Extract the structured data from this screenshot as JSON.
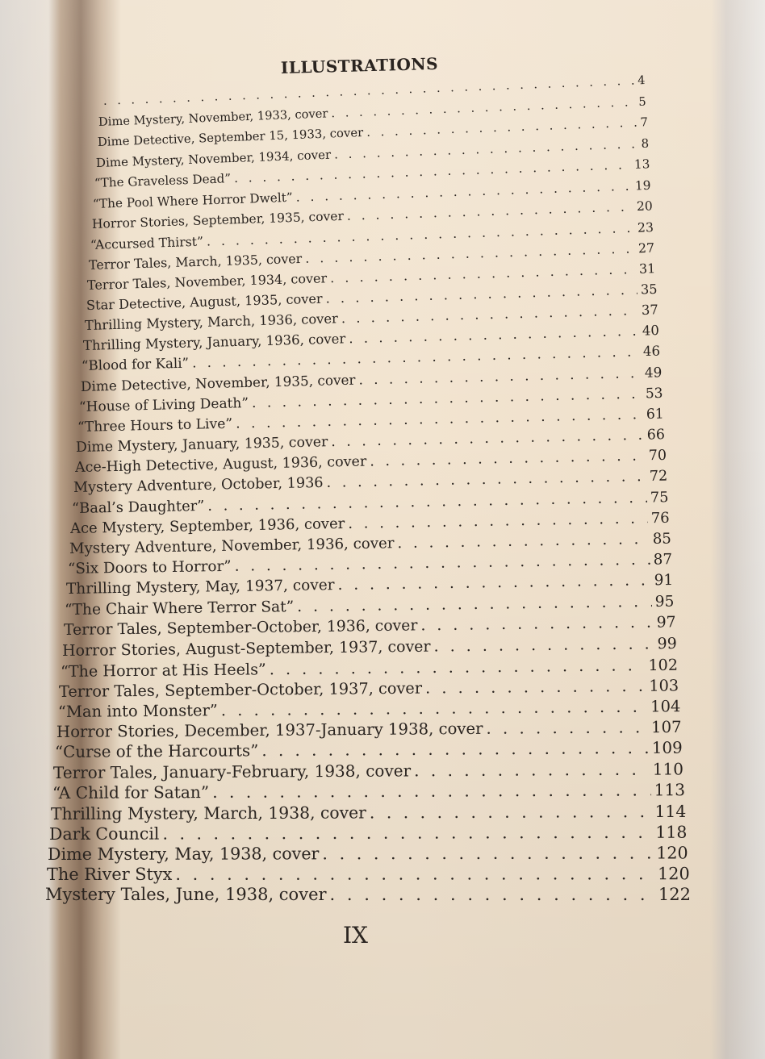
{
  "heading": "ILLUSTRATIONS",
  "entries": [
    {
      "title": "",
      "page": "4"
    },
    {
      "title": "Dime Mystery, November, 1933, cover",
      "page": "5"
    },
    {
      "title": "Dime Detective, September 15, 1933, cover",
      "page": "7"
    },
    {
      "title": "Dime Mystery, November, 1934, cover",
      "page": "8"
    },
    {
      "title": "“The Graveless Dead”",
      "page": "13"
    },
    {
      "title": "“The Pool Where Horror Dwelt”",
      "page": "19"
    },
    {
      "title": "Horror Stories, September, 1935, cover",
      "page": "20"
    },
    {
      "title": "“Accursed Thirst”",
      "page": "23"
    },
    {
      "title": "Terror Tales, March, 1935, cover",
      "page": "27"
    },
    {
      "title": "Terror Tales, November, 1934, cover",
      "page": "31"
    },
    {
      "title": "Star Detective, August, 1935, cover",
      "page": "35"
    },
    {
      "title": "Thrilling Mystery, March, 1936, cover",
      "page": "37"
    },
    {
      "title": "Thrilling Mystery, January, 1936, cover",
      "page": "40"
    },
    {
      "title": "“Blood for Kali”",
      "page": "46"
    },
    {
      "title": "Dime Detective, November, 1935, cover",
      "page": "49"
    },
    {
      "title": "“House of Living Death”",
      "page": "53"
    },
    {
      "title": "“Three Hours to Live”",
      "page": "61"
    },
    {
      "title": "Dime Mystery, January, 1935, cover",
      "page": "66"
    },
    {
      "title": "Ace-High Detective, August, 1936, cover",
      "page": "70"
    },
    {
      "title": "Mystery Adventure, October, 1936",
      "page": "72"
    },
    {
      "title": "“Baal’s Daughter”",
      "page": "75"
    },
    {
      "title": "Ace Mystery, September, 1936, cover",
      "page": "76"
    },
    {
      "title": "Mystery Adventure, November, 1936, cover",
      "page": "85"
    },
    {
      "title": "“Six Doors to Horror”",
      "page": "87"
    },
    {
      "title": "Thrilling Mystery, May, 1937, cover",
      "page": "91"
    },
    {
      "title": "“The Chair Where Terror Sat”",
      "page": "95"
    },
    {
      "title": "Terror Tales, September-October, 1936, cover",
      "page": "97"
    },
    {
      "title": "Horror Stories, August-September, 1937, cover",
      "page": "99"
    },
    {
      "title": "“The Horror at His Heels”",
      "page": "102"
    },
    {
      "title": "Terror Tales, September-October, 1937, cover",
      "page": "103"
    },
    {
      "title": "“Man into Monster”",
      "page": "104"
    },
    {
      "title": "Horror Stories, December, 1937-January 1938, cover",
      "page": "107"
    },
    {
      "title": "“Curse of the Harcourts”",
      "page": "109"
    },
    {
      "title": "Terror Tales, January-February, 1938, cover",
      "page": "110"
    },
    {
      "title": "“A Child for Satan”",
      "page": "113"
    },
    {
      "title": "Thrilling Mystery, March, 1938, cover",
      "page": "114"
    },
    {
      "title": "Dark Council",
      "page": "118"
    },
    {
      "title": "Dime Mystery, May, 1938, cover",
      "page": "120"
    },
    {
      "title": "The River Styx",
      "page": "120"
    },
    {
      "title": "Mystery Tales, June, 1938, cover",
      "page": "122"
    }
  ],
  "folio": "IX"
}
